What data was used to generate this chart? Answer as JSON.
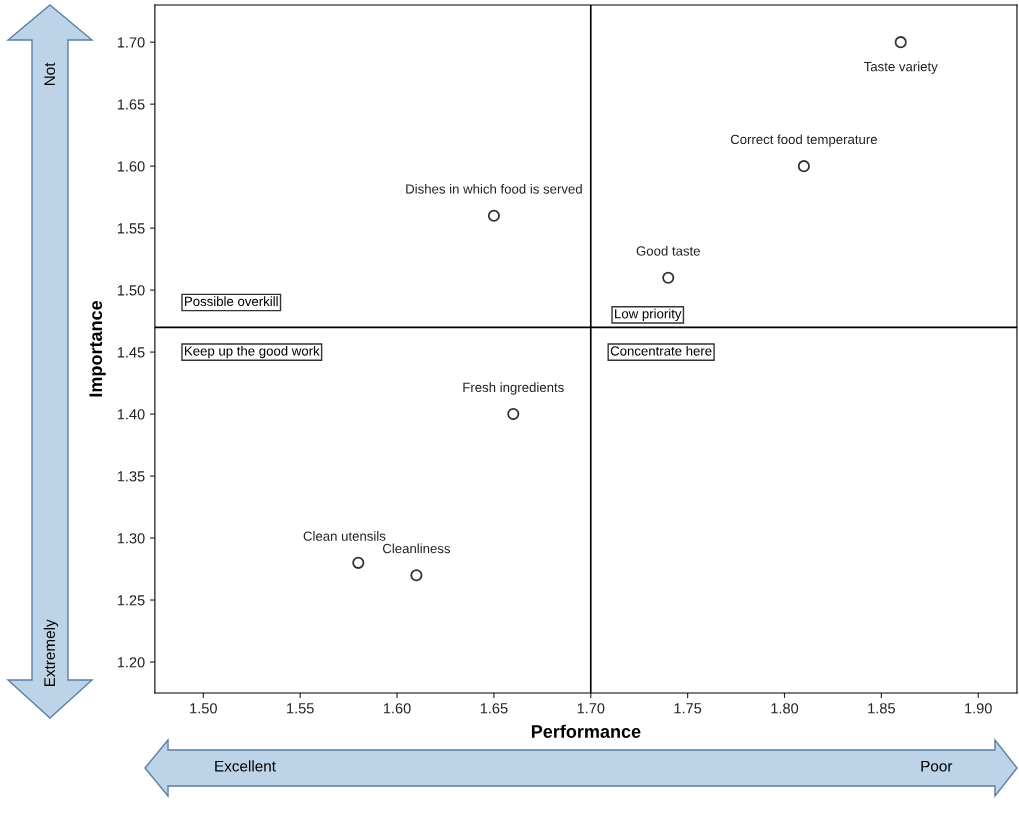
{
  "chart_data": {
    "type": "scatter",
    "xlabel": "Performance",
    "ylabel": "Importance",
    "xlim": [
      1.475,
      1.92
    ],
    "ylim": [
      1.175,
      1.73
    ],
    "xticks": [
      {
        "value": 1.5,
        "label": "1.50"
      },
      {
        "value": 1.55,
        "label": "1.55"
      },
      {
        "value": 1.6,
        "label": "1.60"
      },
      {
        "value": 1.65,
        "label": "1.65"
      },
      {
        "value": 1.7,
        "label": "1.70"
      },
      {
        "value": 1.75,
        "label": "1.75"
      },
      {
        "value": 1.8,
        "label": "1.80"
      },
      {
        "value": 1.85,
        "label": "1.85"
      },
      {
        "value": 1.9,
        "label": "1.90"
      }
    ],
    "yticks": [
      {
        "value": 1.2,
        "label": "1.20"
      },
      {
        "value": 1.25,
        "label": "1.25"
      },
      {
        "value": 1.3,
        "label": "1.30"
      },
      {
        "value": 1.35,
        "label": "1.35"
      },
      {
        "value": 1.4,
        "label": "1.40"
      },
      {
        "value": 1.45,
        "label": "1.45"
      },
      {
        "value": 1.5,
        "label": "1.50"
      },
      {
        "value": 1.55,
        "label": "1.55"
      },
      {
        "value": 1.6,
        "label": "1.60"
      },
      {
        "value": 1.65,
        "label": "1.65"
      },
      {
        "value": 1.7,
        "label": "1.70"
      }
    ],
    "marker": "circle",
    "grid": false,
    "series": [
      {
        "name": "Taste variety",
        "color": "#333333",
        "x": [
          1.86
        ],
        "values": [
          1.7
        ]
      },
      {
        "name": "Correct food temperature",
        "color": "#333333",
        "x": [
          1.81
        ],
        "values": [
          1.6
        ]
      },
      {
        "name": "Dishes in which food is served",
        "color": "#333333",
        "x": [
          1.65
        ],
        "values": [
          1.56
        ]
      },
      {
        "name": "Good taste",
        "color": "#333333",
        "x": [
          1.74
        ],
        "values": [
          1.51
        ]
      },
      {
        "name": "Fresh ingredients",
        "color": "#333333",
        "x": [
          1.66
        ],
        "values": [
          1.4
        ]
      },
      {
        "name": "Clean utensils",
        "color": "#333333",
        "x": [
          1.58
        ],
        "values": [
          1.28
        ]
      },
      {
        "name": "Cleanliness",
        "color": "#333333",
        "x": [
          1.61
        ],
        "values": [
          1.27
        ]
      }
    ],
    "ref_lines": [
      {
        "axis": "x",
        "value": 1.7,
        "color": "#000000"
      },
      {
        "axis": "y",
        "value": 1.47,
        "color": "#000000"
      }
    ],
    "annotations": [
      "Possible overkill",
      "Keep up the good work",
      "Low priority",
      "Concentrate here",
      "Not",
      "Extremely",
      "Excellent",
      "Poor"
    ]
  }
}
